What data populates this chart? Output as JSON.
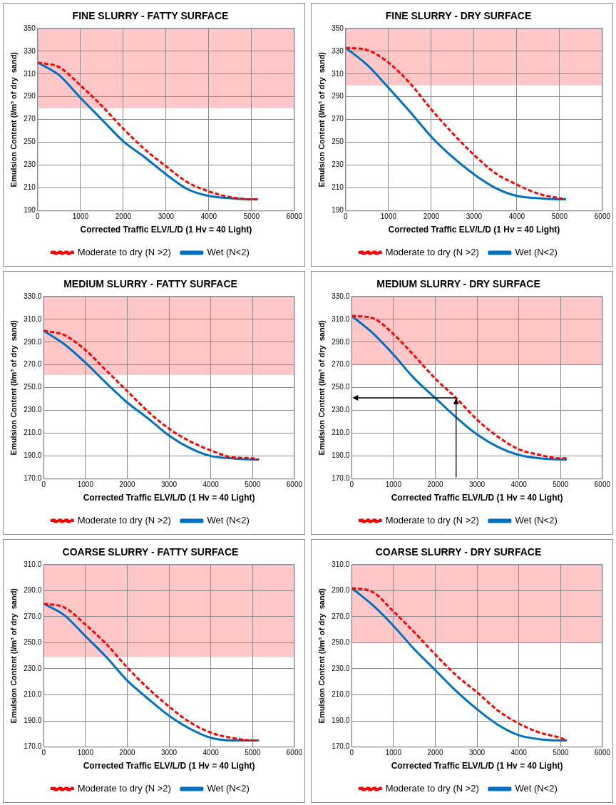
{
  "chart_data": [
    {
      "type": "line",
      "title": "FINE SLURRY - FATTY SURFACE",
      "xlabel": "Corrected Traffic ELV/L/D (1 Hv = 40 Light)",
      "ylabel": "Emulsion Content (l/m³ of dry  sand)",
      "x": [
        0,
        500,
        1000,
        1500,
        2000,
        2500,
        3000,
        3500,
        4000,
        4500,
        5000,
        5150
      ],
      "xlim": [
        0,
        6000
      ],
      "xticks": [
        0,
        1000,
        2000,
        3000,
        4000,
        5000,
        6000
      ],
      "ylim": [
        190,
        350
      ],
      "yticks": [
        190,
        210,
        230,
        250,
        270,
        290,
        310,
        330,
        350
      ],
      "grid": true,
      "legend": "bottom",
      "marker": "none",
      "bands": [
        {
          "axis": "y",
          "from": 280,
          "to": 350,
          "color": "#ffc7c7"
        }
      ],
      "series": [
        {
          "name": "Moderate to dry (N >2)",
          "color": "#ff0000",
          "line_style": "dashed",
          "values": [
            320,
            316,
            300,
            282,
            262,
            244,
            229,
            215,
            207,
            202,
            200,
            200
          ]
        },
        {
          "name": "Wet (N<2)",
          "color": "#0070c0",
          "line_style": "solid",
          "values": [
            320,
            309,
            289,
            270,
            251,
            237,
            222,
            209,
            203,
            201,
            200,
            200
          ]
        }
      ]
    },
    {
      "type": "line",
      "title": "FINE SLURRY - DRY SURFACE",
      "xlabel": "Corrected Traffic ELV/L/D (1 Hv = 40 Light)",
      "ylabel": "Emulsion Content (l/m³ of dry  sand)",
      "x": [
        0,
        500,
        1000,
        1500,
        2000,
        2500,
        3000,
        3500,
        4000,
        4500,
        5000,
        5150
      ],
      "xlim": [
        0,
        6000
      ],
      "xticks": [
        0,
        1000,
        2000,
        3000,
        4000,
        5000,
        6000
      ],
      "ylim": [
        190,
        350
      ],
      "yticks": [
        190,
        210,
        230,
        250,
        270,
        290,
        310,
        330,
        350
      ],
      "grid": true,
      "legend": "bottom",
      "marker": "none",
      "bands": [
        {
          "axis": "y",
          "from": 300,
          "to": 350,
          "color": "#ffc7c7"
        }
      ],
      "series": [
        {
          "name": "Moderate to dry (N >2)",
          "color": "#ff0000",
          "line_style": "dashed",
          "values": [
            333,
            331,
            320,
            302,
            279,
            258,
            239,
            223,
            213,
            205,
            201,
            200
          ]
        },
        {
          "name": "Wet (N<2)",
          "color": "#0070c0",
          "line_style": "solid",
          "values": [
            333,
            318,
            298,
            277,
            255,
            237,
            222,
            210,
            203,
            201,
            200,
            200
          ]
        }
      ]
    },
    {
      "type": "line",
      "title": "MEDIUM SLURRY - FATTY SURFACE",
      "xlabel": "Corrected Traffic ELV/L/D (1 Hv = 40 Light)",
      "ylabel": "Emulsion Content (l/m³ of dry  sand)",
      "x": [
        0,
        500,
        1000,
        1500,
        2000,
        2500,
        3000,
        3500,
        4000,
        4500,
        5000,
        5150
      ],
      "xlim": [
        0,
        6000
      ],
      "xticks": [
        0,
        1000,
        2000,
        3000,
        4000,
        5000,
        6000
      ],
      "ylim": [
        170,
        330
      ],
      "yticks": [
        {
          "value": 170,
          "label": "170.0"
        },
        {
          "value": 190,
          "label": "190.0"
        },
        {
          "value": 210,
          "label": "210.0"
        },
        {
          "value": 230,
          "label": "230.0"
        },
        {
          "value": 250,
          "label": "250.0"
        },
        {
          "value": 270,
          "label": "270.0"
        },
        {
          "value": 290,
          "label": "290.0"
        },
        {
          "value": 310,
          "label": "310.0"
        },
        {
          "value": 330,
          "label": "330.0"
        }
      ],
      "grid": true,
      "legend": "bottom",
      "marker": "none",
      "bands": [
        {
          "axis": "y",
          "from": 261,
          "to": 330,
          "color": "#ffc7c7"
        }
      ],
      "series": [
        {
          "name": "Moderate to dry (N >2)",
          "color": "#ff0000",
          "line_style": "dashed",
          "values": [
            300,
            296,
            283,
            265,
            247,
            229,
            214,
            203,
            195,
            189,
            188,
            187
          ]
        },
        {
          "name": "Wet (N<2)",
          "color": "#0070c0",
          "line_style": "solid",
          "values": [
            300,
            288,
            272,
            254,
            237,
            223,
            208,
            197,
            190,
            188,
            187,
            187
          ]
        }
      ]
    },
    {
      "type": "line",
      "title": "MEDIUM SLURRY - DRY SURFACE",
      "xlabel": "Corrected Traffic ELV/L/D (1 Hv = 40 Light)",
      "ylabel": "Emulsion Content (l/m³ of dry  sand)",
      "x": [
        0,
        500,
        1000,
        1500,
        2000,
        2500,
        3000,
        3500,
        4000,
        4500,
        5000,
        5150
      ],
      "xlim": [
        0,
        6000
      ],
      "xticks": [
        0,
        1000,
        2000,
        3000,
        4000,
        5000,
        6000
      ],
      "ylim": [
        170,
        330
      ],
      "yticks": [
        {
          "value": 170,
          "label": "170.0"
        },
        {
          "value": 190,
          "label": "190.0"
        },
        {
          "value": 210,
          "label": "210.0"
        },
        {
          "value": 230,
          "label": "230.0"
        },
        {
          "value": 250,
          "label": "250.0"
        },
        {
          "value": 270,
          "label": "270.0"
        },
        {
          "value": 290,
          "label": "290.0"
        },
        {
          "value": 310,
          "label": "310.0"
        },
        {
          "value": 330,
          "label": "330.0"
        }
      ],
      "grid": true,
      "legend": "bottom",
      "marker": "none",
      "bands": [
        {
          "axis": "y",
          "from": 270,
          "to": 330,
          "color": "#ffc7c7"
        }
      ],
      "series": [
        {
          "name": "Moderate to dry (N >2)",
          "color": "#ff0000",
          "line_style": "dashed",
          "values": [
            313,
            311,
            297,
            278,
            258,
            241,
            222,
            207,
            196,
            191,
            188,
            188
          ]
        },
        {
          "name": "Wet (N<2)",
          "color": "#0070c0",
          "line_style": "solid",
          "values": [
            313,
            298,
            279,
            258,
            241,
            224,
            209,
            198,
            191,
            188,
            187,
            187
          ]
        }
      ]
    },
    {
      "type": "line",
      "title": "COARSE SLURRY - FATTY SURFACE",
      "xlabel": "Corrected Traffic ELV/L/D (1 Hv = 40 Light)",
      "ylabel": "Emulsion Content (l/m³ of dry  sand)",
      "x": [
        0,
        500,
        1000,
        1500,
        2000,
        2500,
        3000,
        3500,
        4000,
        4500,
        5000,
        5150
      ],
      "xlim": [
        0,
        6000
      ],
      "xticks": [
        0,
        1000,
        2000,
        3000,
        4000,
        5000,
        6000
      ],
      "ylim": [
        170,
        310
      ],
      "yticks": [
        {
          "value": 170,
          "label": "170.0"
        },
        {
          "value": 190,
          "label": "190.0"
        },
        {
          "value": 210,
          "label": "210.0"
        },
        {
          "value": 230,
          "label": "230.0"
        },
        {
          "value": 250,
          "label": "250.0"
        },
        {
          "value": 270,
          "label": "270.0"
        },
        {
          "value": 290,
          "label": "290.0"
        },
        {
          "value": 310,
          "label": "310.0"
        }
      ],
      "grid": true,
      "legend": "bottom",
      "marker": "none",
      "bands": [
        {
          "axis": "y",
          "from": 239,
          "to": 310,
          "color": "#ffc7c7"
        }
      ],
      "series": [
        {
          "name": "Moderate to dry (N >2)",
          "color": "#ff0000",
          "line_style": "dashed",
          "values": [
            280,
            277,
            264,
            249,
            231,
            215,
            201,
            189,
            181,
            177,
            175,
            175
          ]
        },
        {
          "name": "Wet (N<2)",
          "color": "#0070c0",
          "line_style": "solid",
          "values": [
            280,
            271,
            255,
            239,
            221,
            207,
            194,
            184,
            177,
            175,
            175,
            175
          ]
        }
      ]
    },
    {
      "type": "line",
      "title": "COARSE SLURRY - DRY SURFACE",
      "xlabel": "Corrected Traffic ELV/L/D (1 Hv = 40 Light)",
      "ylabel": "Emulsion Content (l/m³ of dry  sand)",
      "x": [
        0,
        500,
        1000,
        1500,
        2000,
        2500,
        3000,
        3500,
        4000,
        4500,
        5000,
        5150
      ],
      "xlim": [
        0,
        6000
      ],
      "xticks": [
        0,
        1000,
        2000,
        3000,
        4000,
        5000,
        6000
      ],
      "ylim": [
        170,
        310
      ],
      "yticks": [
        {
          "value": 170,
          "label": "170.0"
        },
        {
          "value": 190,
          "label": "190.0"
        },
        {
          "value": 210,
          "label": "210.0"
        },
        {
          "value": 230,
          "label": "230.0"
        },
        {
          "value": 250,
          "label": "250.0"
        },
        {
          "value": 270,
          "label": "270.0"
        },
        {
          "value": 290,
          "label": "290.0"
        },
        {
          "value": 310,
          "label": "310.0"
        }
      ],
      "grid": true,
      "legend": "bottom",
      "marker": "none",
      "bands": [
        {
          "axis": "y",
          "from": 250,
          "to": 310,
          "color": "#ffc7c7"
        }
      ],
      "series": [
        {
          "name": "Moderate to dry (N >2)",
          "color": "#ff0000",
          "line_style": "dashed",
          "values": [
            292,
            289,
            274,
            258,
            241,
            225,
            212,
            198,
            188,
            181,
            177,
            175
          ]
        },
        {
          "name": "Wet (N<2)",
          "color": "#0070c0",
          "line_style": "solid",
          "values": [
            292,
            279,
            263,
            245,
            229,
            213,
            199,
            187,
            179,
            176,
            175,
            175
          ]
        }
      ]
    }
  ]
}
